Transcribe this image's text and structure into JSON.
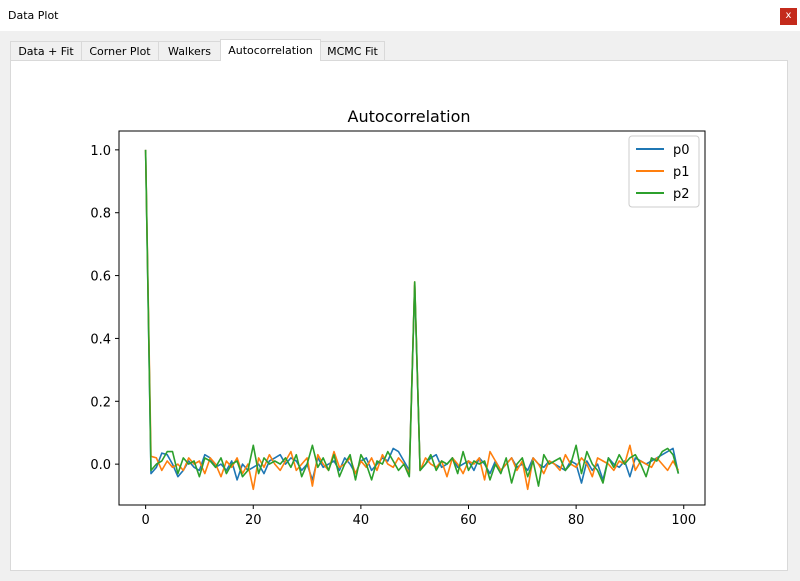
{
  "window": {
    "title": "Data Plot",
    "close_label": "x"
  },
  "tabs": [
    {
      "label": "Data + Fit",
      "active": false
    },
    {
      "label": "Corner Plot",
      "active": false
    },
    {
      "label": "Walkers",
      "active": false
    },
    {
      "label": "Autocorrelation",
      "active": true
    },
    {
      "label": "MCMC Fit",
      "active": false
    }
  ],
  "colors": {
    "p0": "#1f77b4",
    "p1": "#ff7f0e",
    "p2": "#2ca02c"
  },
  "chart_data": {
    "type": "line",
    "title": "Autocorrelation",
    "xlabel": "",
    "ylabel": "",
    "xlim": [
      -4.95,
      103.95
    ],
    "ylim": [
      -0.13,
      1.06
    ],
    "xticks": [
      0,
      20,
      40,
      60,
      80,
      100
    ],
    "yticks": [
      0.0,
      0.2,
      0.4,
      0.6,
      0.8,
      1.0
    ],
    "legend_position": "top-right",
    "grid": false,
    "series": [
      {
        "name": "p0",
        "color": "#1f77b4",
        "x": [
          0,
          1,
          2,
          3,
          4,
          5,
          6,
          7,
          8,
          9,
          10,
          11,
          12,
          13,
          14,
          15,
          16,
          17,
          18,
          19,
          20,
          21,
          22,
          23,
          24,
          25,
          26,
          27,
          28,
          29,
          30,
          31,
          32,
          33,
          34,
          35,
          36,
          37,
          38,
          39,
          40,
          41,
          42,
          43,
          44,
          45,
          46,
          47,
          48,
          49,
          50,
          51,
          52,
          53,
          54,
          55,
          56,
          57,
          58,
          59,
          60,
          61,
          62,
          63,
          64,
          65,
          66,
          67,
          68,
          69,
          70,
          71,
          72,
          73,
          74,
          75,
          76,
          77,
          78,
          79,
          80,
          81,
          82,
          83,
          84,
          85,
          86,
          87,
          88,
          89,
          90,
          91,
          92,
          93,
          94,
          95,
          96,
          97,
          98,
          99
        ],
        "y": [
          1.0,
          -0.03,
          -0.01,
          0.035,
          0.03,
          0.0,
          -0.04,
          -0.02,
          0.01,
          -0.01,
          -0.02,
          0.03,
          0.02,
          -0.01,
          0.0,
          -0.02,
          0.01,
          -0.05,
          0.0,
          -0.02,
          -0.01,
          0.0,
          -0.03,
          0.01,
          0.02,
          0.03,
          0.0,
          0.02,
          0.01,
          -0.02,
          0.0,
          -0.05,
          0.02,
          -0.01,
          0.0,
          0.01,
          -0.02,
          0.02,
          0.0,
          -0.03,
          0.01,
          0.02,
          -0.02,
          0.0,
          0.02,
          0.01,
          0.05,
          0.04,
          0.01,
          -0.02,
          0.57,
          -0.02,
          0.0,
          0.02,
          0.03,
          -0.01,
          0.0,
          0.02,
          -0.01,
          0.0,
          0.01,
          -0.02,
          0.02,
          0.0,
          -0.03,
          0.01,
          -0.02,
          0.0,
          0.02,
          -0.01,
          0.0,
          -0.02,
          0.02,
          0.0,
          -0.01,
          0.01,
          0.0,
          -0.01,
          -0.02,
          0.01,
          0.0,
          -0.06,
          0.01,
          -0.02,
          0.0,
          -0.05,
          0.02,
          0.0,
          -0.01,
          0.01,
          -0.04,
          0.02,
          0.01,
          0.0,
          0.01,
          0.02,
          0.03,
          0.04,
          0.05,
          -0.03
        ]
      },
      {
        "name": "p1",
        "color": "#ff7f0e",
        "x": [
          0,
          1,
          2,
          3,
          4,
          5,
          6,
          7,
          8,
          9,
          10,
          11,
          12,
          13,
          14,
          15,
          16,
          17,
          18,
          19,
          20,
          21,
          22,
          23,
          24,
          25,
          26,
          27,
          28,
          29,
          30,
          31,
          32,
          33,
          34,
          35,
          36,
          37,
          38,
          39,
          40,
          41,
          42,
          43,
          44,
          45,
          46,
          47,
          48,
          49,
          50,
          51,
          52,
          53,
          54,
          55,
          56,
          57,
          58,
          59,
          60,
          61,
          62,
          63,
          64,
          65,
          66,
          67,
          68,
          69,
          70,
          71,
          72,
          73,
          74,
          75,
          76,
          77,
          78,
          79,
          80,
          81,
          82,
          83,
          84,
          85,
          86,
          87,
          88,
          89,
          90,
          91,
          92,
          93,
          94,
          95,
          96,
          97,
          98,
          99
        ],
        "y": [
          1.0,
          0.025,
          0.02,
          -0.02,
          0.01,
          -0.01,
          0.0,
          -0.02,
          0.02,
          0.0,
          0.01,
          -0.03,
          0.02,
          0.0,
          -0.04,
          0.01,
          -0.01,
          0.02,
          -0.03,
          0.0,
          -0.08,
          0.02,
          -0.01,
          0.03,
          0.0,
          -0.02,
          0.01,
          0.04,
          -0.02,
          0.0,
          0.02,
          -0.07,
          0.03,
          0.0,
          -0.02,
          0.04,
          -0.01,
          0.0,
          0.02,
          -0.03,
          0.01,
          -0.01,
          0.02,
          -0.02,
          0.03,
          0.0,
          -0.01,
          0.02,
          0.0,
          -0.03,
          0.58,
          -0.02,
          0.02,
          0.0,
          -0.01,
          0.01,
          -0.04,
          0.02,
          0.0,
          -0.03,
          0.01,
          0.0,
          0.02,
          -0.05,
          0.04,
          0.01,
          -0.02,
          0.0,
          0.02,
          -0.02,
          0.01,
          -0.08,
          0.02,
          0.0,
          -0.03,
          0.01,
          0.0,
          -0.02,
          0.03,
          0.0,
          -0.01,
          0.02,
          0.0,
          -0.04,
          0.02,
          0.01,
          0.0,
          -0.02,
          0.01,
          0.0,
          0.06,
          -0.02,
          0.01,
          0.0,
          -0.01,
          0.02,
          0.0,
          -0.02,
          0.01,
          -0.02
        ]
      },
      {
        "name": "p2",
        "color": "#2ca02c",
        "x": [
          0,
          1,
          2,
          3,
          4,
          5,
          6,
          7,
          8,
          9,
          10,
          11,
          12,
          13,
          14,
          15,
          16,
          17,
          18,
          19,
          20,
          21,
          22,
          23,
          24,
          25,
          26,
          27,
          28,
          29,
          30,
          31,
          32,
          33,
          34,
          35,
          36,
          37,
          38,
          39,
          40,
          41,
          42,
          43,
          44,
          45,
          46,
          47,
          48,
          49,
          50,
          51,
          52,
          53,
          54,
          55,
          56,
          57,
          58,
          59,
          60,
          61,
          62,
          63,
          64,
          65,
          66,
          67,
          68,
          69,
          70,
          71,
          72,
          73,
          74,
          75,
          76,
          77,
          78,
          79,
          80,
          81,
          82,
          83,
          84,
          85,
          86,
          87,
          88,
          89,
          90,
          91,
          92,
          93,
          94,
          95,
          96,
          97,
          98,
          99
        ],
        "y": [
          1.0,
          -0.02,
          0.0,
          0.01,
          0.04,
          0.04,
          -0.03,
          0.02,
          0.0,
          0.01,
          -0.04,
          0.02,
          0.01,
          -0.01,
          0.02,
          -0.03,
          0.0,
          0.01,
          -0.04,
          -0.02,
          0.06,
          -0.03,
          0.02,
          0.0,
          0.01,
          0.0,
          0.02,
          -0.01,
          0.03,
          -0.04,
          0.0,
          0.06,
          -0.01,
          0.02,
          -0.02,
          0.03,
          -0.04,
          0.0,
          0.03,
          -0.05,
          0.03,
          0.0,
          -0.05,
          0.01,
          0.0,
          0.04,
          0.01,
          -0.02,
          0.0,
          -0.04,
          0.58,
          -0.02,
          0.0,
          0.03,
          -0.02,
          0.01,
          0.0,
          0.02,
          -0.03,
          0.04,
          -0.02,
          0.01,
          0.0,
          0.01,
          -0.05,
          0.0,
          -0.03,
          0.02,
          -0.06,
          0.0,
          0.02,
          -0.04,
          0.01,
          -0.07,
          0.03,
          0.0,
          0.01,
          0.02,
          -0.02,
          0.0,
          0.06,
          -0.03,
          0.04,
          0.0,
          -0.02,
          -0.06,
          0.02,
          -0.01,
          0.03,
          0.0,
          0.02,
          0.03,
          0.0,
          -0.04,
          0.02,
          0.01,
          0.04,
          0.05,
          0.03,
          -0.03
        ]
      }
    ]
  }
}
